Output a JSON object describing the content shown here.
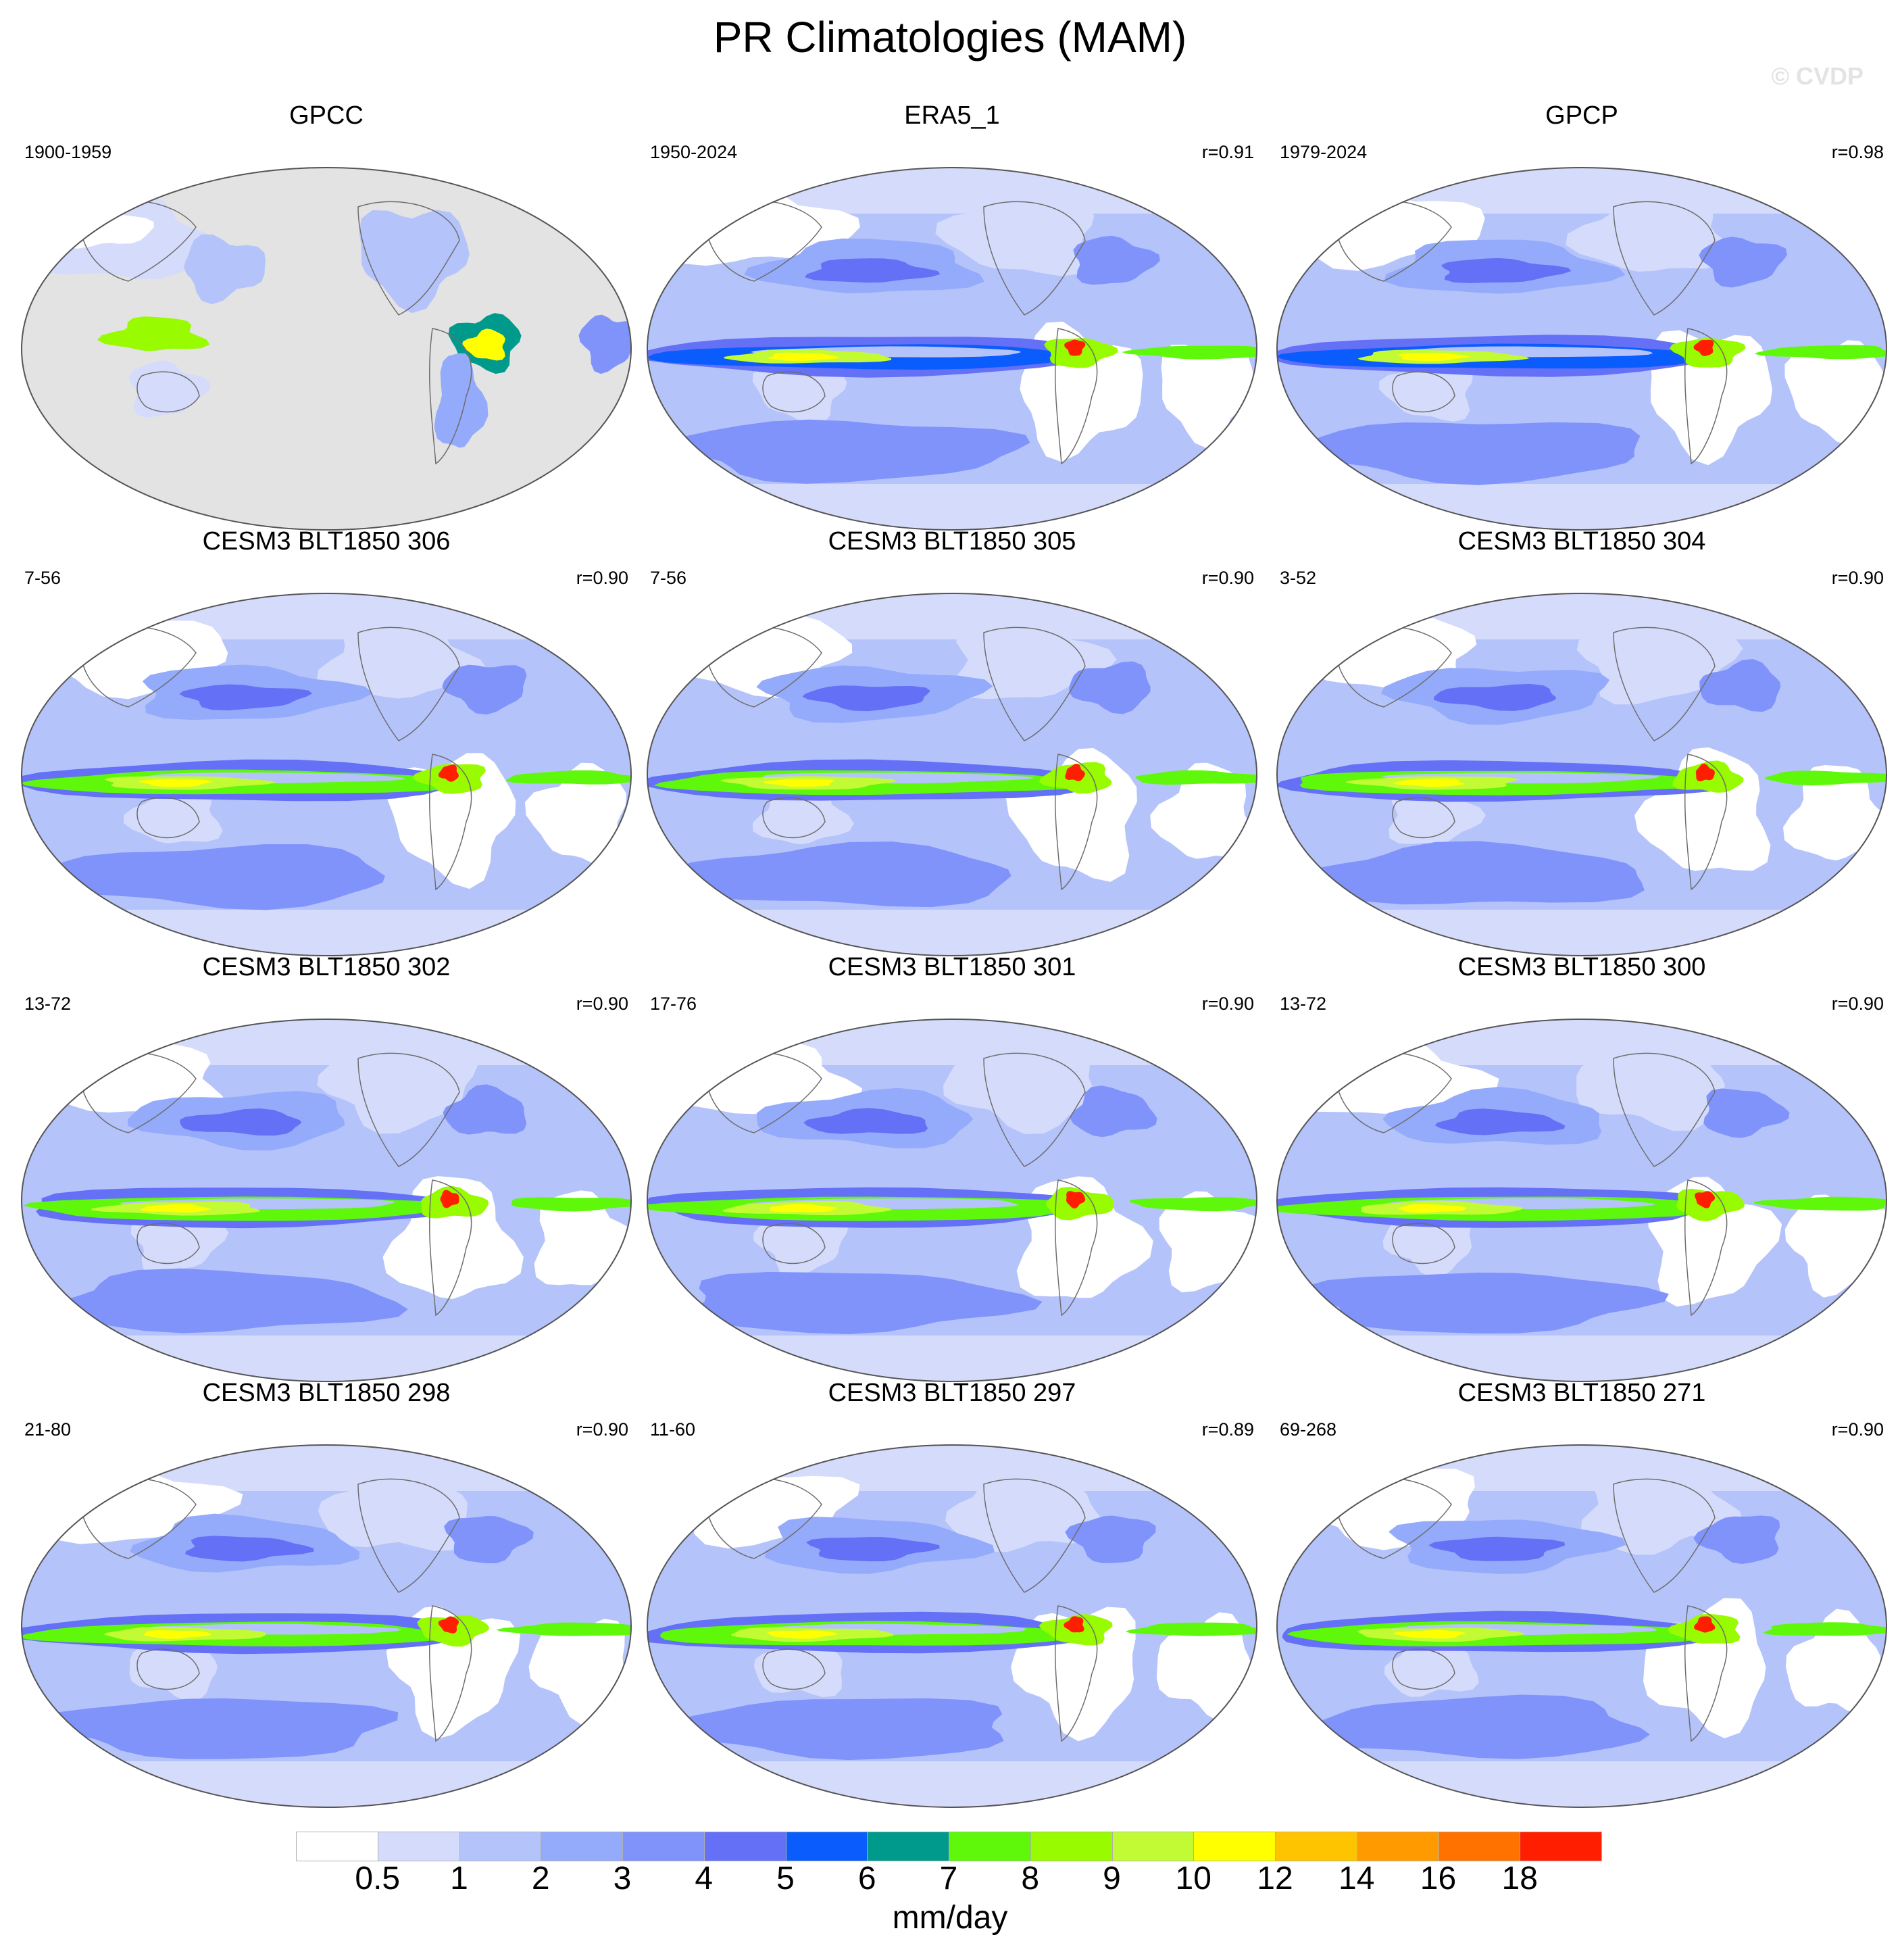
{
  "title": "PR Climatologies (MAM)",
  "watermark": "© CVDP",
  "land_color": "#808080",
  "panels": [
    {
      "title": "GPCC",
      "years": "1900-1959",
      "corr": "",
      "style": "obs-land"
    },
    {
      "title": "ERA5_1",
      "years": "1950-2024",
      "corr": "r=0.91",
      "style": "reanalysis"
    },
    {
      "title": "GPCP",
      "years": "1979-2024",
      "corr": "r=0.98",
      "style": "reanalysis"
    },
    {
      "title": "CESM3 BLT1850 306",
      "years": "7-56",
      "corr": "r=0.90",
      "style": "model"
    },
    {
      "title": "CESM3 BLT1850 305",
      "years": "7-56",
      "corr": "r=0.90",
      "style": "model"
    },
    {
      "title": "CESM3 BLT1850 304",
      "years": "3-52",
      "corr": "r=0.90",
      "style": "model"
    },
    {
      "title": "CESM3 BLT1850 302",
      "years": "13-72",
      "corr": "r=0.90",
      "style": "model"
    },
    {
      "title": "CESM3 BLT1850 301",
      "years": "17-76",
      "corr": "r=0.90",
      "style": "model"
    },
    {
      "title": "CESM3 BLT1850 300",
      "years": "13-72",
      "corr": "r=0.90",
      "style": "model"
    },
    {
      "title": "CESM3 BLT1850 298",
      "years": "21-80",
      "corr": "r=0.90",
      "style": "model"
    },
    {
      "title": "CESM3 BLT1850 297",
      "years": "11-60",
      "corr": "r=0.89",
      "style": "model"
    },
    {
      "title": "CESM3 BLT1850 271",
      "years": "69-268",
      "corr": "r=0.90",
      "style": "model"
    }
  ],
  "colorbar": {
    "labels": [
      "0.5",
      "1",
      "2",
      "3",
      "4",
      "5",
      "6",
      "7",
      "8",
      "9",
      "10",
      "12",
      "14",
      "16",
      "18"
    ],
    "colors": [
      "#ffffff",
      "#d5dcfb",
      "#b5c3fb",
      "#94aafb",
      "#7f93fb",
      "#6470f5",
      "#0a5cfc",
      "#009a8c",
      "#5ff80a",
      "#99fb00",
      "#c2fb34",
      "#ffff00",
      "#ffc400",
      "#ff9a00",
      "#ff7200",
      "#ff1f00"
    ],
    "units": "mm/day"
  }
}
